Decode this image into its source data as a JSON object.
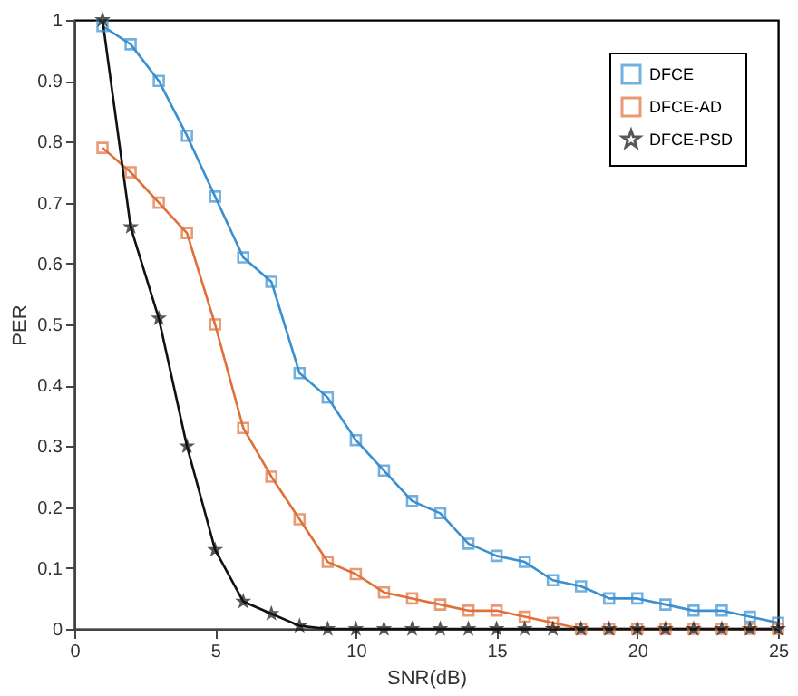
{
  "chart_data": {
    "type": "line",
    "xlabel": "SNR(dB)",
    "ylabel": "PER",
    "xlim": [
      0,
      25
    ],
    "xticks": [
      0,
      5,
      10,
      15,
      20,
      25
    ],
    "ylim": [
      0,
      1
    ],
    "yticks": [
      0,
      0.1,
      0.2,
      0.3,
      0.4,
      0.5,
      0.6,
      0.7,
      0.8,
      0.9,
      1
    ],
    "x": [
      1,
      2,
      3,
      4,
      5,
      6,
      7,
      8,
      9,
      10,
      11,
      12,
      13,
      14,
      15,
      16,
      17,
      18,
      19,
      20,
      21,
      22,
      23,
      24,
      25
    ],
    "grid": false,
    "legend": "top right",
    "series": [
      {
        "name": "DFCE",
        "color": "#3a8fd0",
        "marker": "square",
        "values": [
          0.99,
          0.96,
          0.9,
          0.81,
          0.71,
          0.61,
          0.57,
          0.42,
          0.38,
          0.31,
          0.26,
          0.21,
          0.19,
          0.14,
          0.12,
          0.11,
          0.08,
          0.07,
          0.05,
          0.05,
          0.04,
          0.03,
          0.03,
          0.02,
          0.01
        ]
      },
      {
        "name": "DFCE-AD",
        "color": "#e0703a",
        "marker": "square",
        "values": [
          0.79,
          0.75,
          0.7,
          0.65,
          0.5,
          0.33,
          0.25,
          0.18,
          0.11,
          0.09,
          0.06,
          0.05,
          0.04,
          0.03,
          0.03,
          0.02,
          0.01,
          0,
          0,
          0,
          0,
          0,
          0,
          0,
          0
        ]
      },
      {
        "name": "DFCE-PSD",
        "color": "#111111",
        "marker": "star",
        "values": [
          1.0,
          0.66,
          0.51,
          0.3,
          0.13,
          0.045,
          0.025,
          0.005,
          0,
          0,
          0,
          0,
          0,
          0,
          0,
          0,
          0,
          0,
          0,
          0,
          0,
          0,
          0,
          0,
          0
        ]
      }
    ]
  }
}
